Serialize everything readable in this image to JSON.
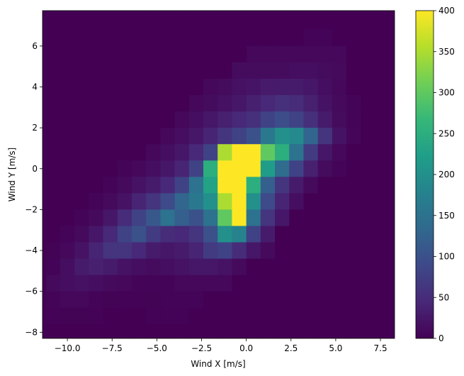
{
  "chart_data": {
    "type": "heatmap",
    "title": "",
    "xlabel": "Wind X [m/s]",
    "ylabel": "Wind Y [m/s]",
    "xlim": [
      -11.39,
      8.29
    ],
    "ylim": [
      -8.3,
      7.73
    ],
    "x_edges_start": -11.2,
    "y_edges_start": -8.4,
    "bin_width": 0.8,
    "bin_height": 0.8,
    "x_ticks": [
      -10.0,
      -7.5,
      -5.0,
      -2.5,
      0.0,
      2.5,
      5.0,
      7.5
    ],
    "x_tick_labels": [
      "−10.0",
      "−7.5",
      "−5.0",
      "−2.5",
      "0.0",
      "2.5",
      "5.0",
      "7.5"
    ],
    "y_ticks": [
      -8,
      -6,
      -4,
      -2,
      0,
      2,
      4,
      6
    ],
    "y_tick_labels": [
      "−8",
      "−6",
      "−4",
      "−2",
      "0",
      "2",
      "4",
      "6"
    ],
    "colorbar": {
      "vmin": 0,
      "vmax": 400,
      "ticks": [
        0,
        50,
        100,
        150,
        200,
        250,
        300,
        350,
        400
      ],
      "tick_labels": [
        "0",
        "50",
        "100",
        "150",
        "200",
        "250",
        "300",
        "350",
        "400"
      ],
      "colormap": "viridis",
      "colormap_stops": [
        "#440154",
        "#482878",
        "#3e4989",
        "#31688e",
        "#26828e",
        "#1f9e89",
        "#35b779",
        "#6ece58",
        "#b5de2b",
        "#fde725"
      ]
    },
    "grid": false,
    "counts_rows_top_to_bottom": [
      [
        0,
        0,
        0,
        0,
        0,
        0,
        0,
        0,
        0,
        0,
        0,
        0,
        0,
        0,
        0,
        0,
        0,
        0,
        0,
        0,
        0,
        0,
        0,
        0
      ],
      [
        0,
        0,
        0,
        0,
        0,
        0,
        0,
        0,
        0,
        0,
        0,
        0,
        0,
        0,
        0,
        0,
        0,
        0,
        5,
        5,
        0,
        0,
        0,
        0
      ],
      [
        0,
        0,
        0,
        0,
        0,
        0,
        0,
        0,
        0,
        0,
        0,
        0,
        0,
        0,
        8,
        8,
        8,
        8,
        8,
        8,
        8,
        0,
        0,
        0
      ],
      [
        0,
        0,
        0,
        0,
        0,
        0,
        0,
        0,
        0,
        0,
        0,
        0,
        0,
        12,
        12,
        12,
        12,
        15,
        15,
        12,
        10,
        0,
        0,
        0
      ],
      [
        0,
        0,
        0,
        0,
        0,
        0,
        0,
        0,
        0,
        0,
        0,
        8,
        12,
        18,
        22,
        28,
        30,
        30,
        25,
        15,
        8,
        0,
        0,
        0
      ],
      [
        0,
        0,
        0,
        0,
        0,
        0,
        0,
        0,
        0,
        0,
        8,
        12,
        18,
        25,
        35,
        45,
        55,
        50,
        35,
        20,
        10,
        5,
        0,
        0
      ],
      [
        0,
        0,
        0,
        0,
        0,
        0,
        0,
        0,
        0,
        8,
        15,
        25,
        35,
        45,
        55,
        80,
        95,
        80,
        55,
        30,
        12,
        5,
        0,
        0
      ],
      [
        0,
        0,
        0,
        0,
        0,
        0,
        0,
        0,
        8,
        15,
        25,
        40,
        60,
        80,
        100,
        160,
        200,
        190,
        130,
        60,
        20,
        6,
        0,
        0
      ],
      [
        0,
        0,
        0,
        0,
        0,
        0,
        0,
        8,
        15,
        25,
        45,
        80,
        350,
        400,
        420,
        300,
        250,
        150,
        70,
        25,
        8,
        0,
        0,
        0
      ],
      [
        0,
        0,
        0,
        0,
        0,
        5,
        8,
        15,
        25,
        40,
        80,
        250,
        500,
        600,
        450,
        220,
        140,
        80,
        35,
        12,
        5,
        0,
        0,
        0
      ],
      [
        0,
        0,
        0,
        0,
        5,
        10,
        20,
        30,
        45,
        80,
        150,
        230,
        450,
        550,
        250,
        120,
        60,
        30,
        10,
        0,
        0,
        0,
        0,
        0
      ],
      [
        0,
        0,
        0,
        5,
        10,
        20,
        40,
        60,
        90,
        130,
        160,
        200,
        350,
        500,
        200,
        90,
        40,
        15,
        0,
        0,
        0,
        0,
        0,
        0
      ],
      [
        0,
        0,
        5,
        10,
        25,
        50,
        80,
        110,
        150,
        120,
        100,
        150,
        300,
        420,
        150,
        60,
        25,
        0,
        0,
        0,
        0,
        0,
        0,
        0
      ],
      [
        0,
        5,
        10,
        25,
        45,
        80,
        100,
        70,
        50,
        45,
        60,
        100,
        200,
        180,
        80,
        30,
        0,
        0,
        0,
        0,
        0,
        0,
        0,
        0
      ],
      [
        3,
        8,
        20,
        40,
        60,
        60,
        45,
        30,
        25,
        30,
        40,
        70,
        80,
        50,
        25,
        10,
        0,
        0,
        0,
        0,
        0,
        0,
        0,
        0
      ],
      [
        5,
        15,
        30,
        35,
        30,
        20,
        15,
        12,
        15,
        20,
        25,
        25,
        20,
        10,
        0,
        0,
        0,
        0,
        0,
        0,
        0,
        0,
        0,
        0
      ],
      [
        10,
        15,
        18,
        15,
        10,
        8,
        5,
        5,
        5,
        8,
        8,
        8,
        8,
        0,
        0,
        0,
        0,
        0,
        0,
        0,
        0,
        0,
        0,
        0
      ],
      [
        5,
        8,
        8,
        5,
        3,
        2,
        2,
        3,
        5,
        5,
        5,
        0,
        0,
        0,
        0,
        0,
        0,
        0,
        0,
        0,
        0,
        0,
        0,
        0
      ],
      [
        2,
        3,
        3,
        2,
        0,
        0,
        0,
        2,
        2,
        2,
        0,
        0,
        0,
        0,
        0,
        0,
        0,
        0,
        0,
        0,
        0,
        0,
        0,
        0
      ],
      [
        0,
        0,
        0,
        0,
        0,
        0,
        0,
        0,
        0,
        0,
        0,
        0,
        0,
        0,
        0,
        0,
        0,
        0,
        0,
        0,
        0,
        0,
        0,
        0
      ]
    ]
  }
}
